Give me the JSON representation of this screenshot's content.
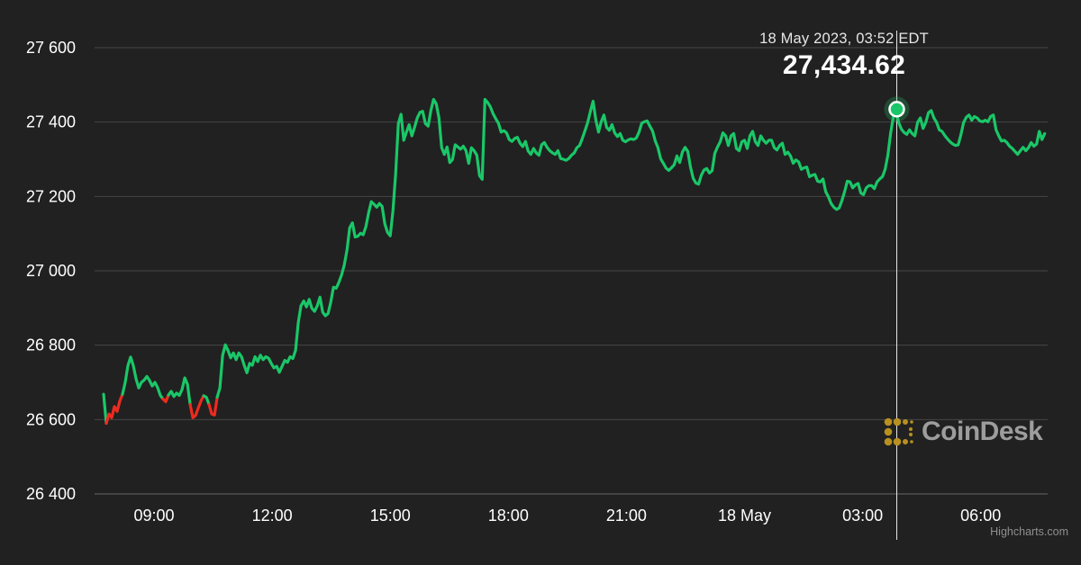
{
  "tooltip": {
    "datetime": "18 May 2023, 03:52 EDT",
    "price": "27,434.62"
  },
  "branding": {
    "logo_text": "CoinDesk",
    "icon": "coindesk-dots-icon",
    "icon_color": "#b8901f",
    "credit": "Highcharts.com"
  },
  "colors": {
    "background": "#212121",
    "grid": "#464646",
    "grid_bottom": "#666666",
    "text": "#ffffff",
    "up": "#1ac768",
    "down": "#ee2b20",
    "crosshair": "#e8e8e8",
    "marker_glow": "rgba(37,189,102,0.28)",
    "marker_ring": "#ffffff"
  },
  "chart_data": {
    "type": "line",
    "title": "",
    "grid": true,
    "legend": false,
    "ylim": [
      26400,
      27600
    ],
    "yticks": [
      {
        "value": 26400,
        "label": "26 400"
      },
      {
        "value": 26600,
        "label": "26 600"
      },
      {
        "value": 26800,
        "label": "26 800"
      },
      {
        "value": 27000,
        "label": "27 000"
      },
      {
        "value": 27200,
        "label": "27 200"
      },
      {
        "value": 27400,
        "label": "27 400"
      },
      {
        "value": 27600,
        "label": "27 600"
      }
    ],
    "xlim_hours": [
      7.375,
      31.7
    ],
    "xticks": [
      {
        "hour": 9,
        "label": "09:00"
      },
      {
        "hour": 12,
        "label": "12:00"
      },
      {
        "hour": 15,
        "label": "15:00"
      },
      {
        "hour": 18,
        "label": "18:00"
      },
      {
        "hour": 21,
        "label": "21:00"
      },
      {
        "hour": 24,
        "label": "18 May"
      },
      {
        "hour": 27,
        "label": "03:00"
      },
      {
        "hour": 30,
        "label": "06:00"
      }
    ],
    "marker": {
      "t_hours": 27.8667,
      "price": 27434.62,
      "datetime": "18 May 2023, 03:52 EDT"
    },
    "series": {
      "name": "price",
      "down_threshold": 26658,
      "t_start_hours": 7.718,
      "t_step_hours": 0.0687,
      "prices": [
        26668,
        26590,
        26615,
        26605,
        26635,
        26622,
        26650,
        26668,
        26700,
        26745,
        26768,
        26745,
        26710,
        26685,
        26700,
        26706,
        26716,
        26705,
        26690,
        26700,
        26686,
        26665,
        26655,
        26648,
        26666,
        26676,
        26662,
        26671,
        26665,
        26681,
        26712,
        26695,
        26640,
        26605,
        26611,
        26631,
        26650,
        26664,
        26660,
        26640,
        26615,
        26612,
        26660,
        26685,
        26772,
        26801,
        26786,
        26766,
        26779,
        26761,
        26779,
        26769,
        26746,
        26726,
        26751,
        26746,
        26769,
        26756,
        26773,
        26761,
        26769,
        26765,
        26751,
        26739,
        26743,
        26727,
        26743,
        26759,
        26754,
        26769,
        26764,
        26786,
        26861,
        26906,
        26919,
        26903,
        26923,
        26899,
        26891,
        26906,
        26929,
        26889,
        26879,
        26885,
        26916,
        26956,
        26953,
        26969,
        26989,
        27016,
        27056,
        27116,
        27129,
        27091,
        27093,
        27101,
        27097,
        27119,
        27156,
        27186,
        27179,
        27171,
        27181,
        27173,
        27126,
        27103,
        27094,
        27161,
        27261,
        27396,
        27421,
        27351,
        27373,
        27393,
        27363,
        27386,
        27411,
        27426,
        27429,
        27396,
        27389,
        27431,
        27461,
        27449,
        27411,
        27331,
        27313,
        27333,
        27291,
        27299,
        27339,
        27333,
        27327,
        27335,
        27323,
        27289,
        27331,
        27323,
        27311,
        27256,
        27246,
        27461,
        27453,
        27441,
        27423,
        27409,
        27397,
        27373,
        27377,
        27371,
        27353,
        27348,
        27356,
        27359,
        27343,
        27334,
        27348,
        27322,
        27313,
        27329,
        27317,
        27311,
        27339,
        27345,
        27332,
        27323,
        27317,
        27313,
        27323,
        27302,
        27300,
        27297,
        27302,
        27311,
        27317,
        27331,
        27337,
        27356,
        27377,
        27399,
        27429,
        27456,
        27406,
        27373,
        27401,
        27419,
        27386,
        27378,
        27393,
        27371,
        27361,
        27369,
        27351,
        27347,
        27352,
        27355,
        27353,
        27357,
        27373,
        27397,
        27401,
        27403,
        27389,
        27376,
        27349,
        27331,
        27301,
        27289,
        27276,
        27270,
        27277,
        27285,
        27309,
        27291,
        27319,
        27332,
        27321,
        27279,
        27249,
        27236,
        27233,
        27257,
        27271,
        27275,
        27263,
        27269,
        27316,
        27333,
        27347,
        27371,
        27363,
        27337,
        27363,
        27369,
        27329,
        27323,
        27347,
        27351,
        27329,
        27363,
        27375,
        27347,
        27337,
        27363,
        27351,
        27343,
        27351,
        27351,
        27331,
        27325,
        27337,
        27343,
        27313,
        27319,
        27309,
        27289,
        27298,
        27293,
        27273,
        27277,
        27279,
        27253,
        27257,
        27259,
        27241,
        27239,
        27247,
        27213,
        27199,
        27181,
        27171,
        27165,
        27169,
        27189,
        27213,
        27241,
        27239,
        27223,
        27231,
        27235,
        27209,
        27205,
        27223,
        27229,
        27229,
        27221,
        27239,
        27247,
        27253,
        27273,
        27311,
        27369,
        27413,
        27431,
        27399,
        27381,
        27372,
        27367,
        27379,
        27369,
        27363,
        27399,
        27411,
        27383,
        27399,
        27425,
        27431,
        27411,
        27399,
        27379,
        27375,
        27364,
        27355,
        27347,
        27341,
        27337,
        27339,
        27366,
        27399,
        27413,
        27419,
        27405,
        27415,
        27411,
        27403,
        27401,
        27405,
        27401,
        27415,
        27419,
        27379,
        27363,
        27349,
        27351,
        27345,
        27335,
        27329,
        27321,
        27313,
        27323,
        27332,
        27323,
        27331,
        27345,
        27335,
        27341,
        27375,
        27353,
        27369
      ]
    }
  }
}
